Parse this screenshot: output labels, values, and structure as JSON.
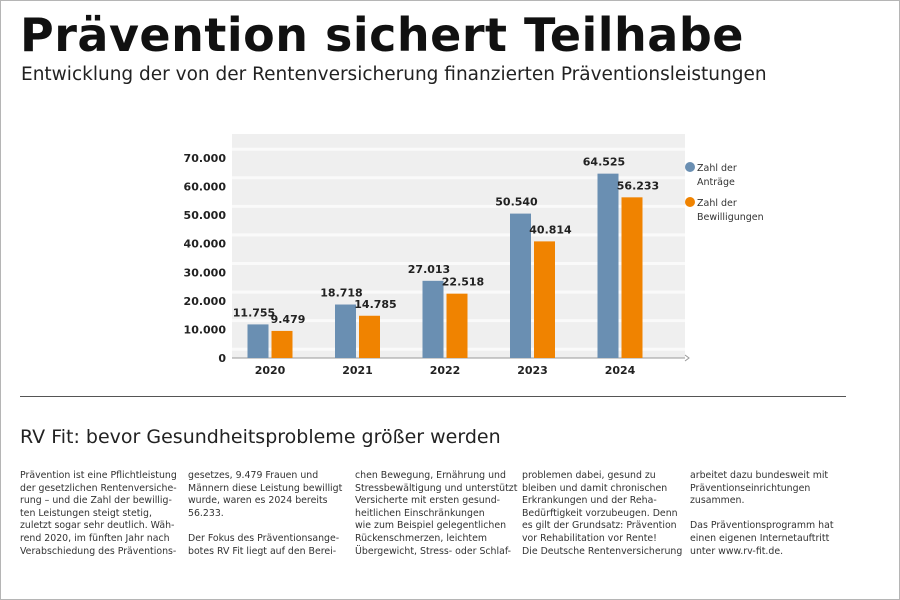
{
  "title": "Prävention sichert Teilhabe",
  "subtitle": "Entwicklung der von der Rentenversicherung finanzierten Präventionsleistungen",
  "chart_data": {
    "type": "bar",
    "categories": [
      "2020",
      "2021",
      "2022",
      "2023",
      "2024"
    ],
    "series": [
      {
        "name": "Zahl der Anträge",
        "values": [
          11755,
          18718,
          27013,
          50540,
          64525
        ],
        "labels": [
          "11.755",
          "18.718",
          "27.013",
          "50.540",
          "64.525"
        ],
        "color": "#6a8fb2"
      },
      {
        "name": "Zahl der Bewilligungen",
        "values": [
          9479,
          14785,
          22518,
          40814,
          56233
        ],
        "labels": [
          "9.479",
          "14.785",
          "22.518",
          "40.814",
          "56.233"
        ],
        "color": "#f08300"
      }
    ],
    "legend_lines": [
      [
        "Zahl der",
        "Anträge"
      ],
      [
        "Zahl der",
        "Bewilligungen"
      ]
    ],
    "yticks": [
      0,
      10000,
      20000,
      30000,
      40000,
      50000,
      60000,
      70000
    ],
    "ytick_labels": [
      "0",
      "10.000",
      "20.000",
      "30.000",
      "40.000",
      "50.000",
      "60.000",
      "70.000"
    ],
    "ylim": [
      0,
      70000
    ],
    "legend_position": "right",
    "grid": true
  },
  "section_heading": "RV Fit: bevor Gesundheitsprobleme größer werden",
  "columns": [
    "Prävention ist eine Pflichtleistung\nder gesetzlichen Rentenversiche-\nrung – und die Zahl der bewillig-\nten Leistungen steigt stetig,\nzuletzt sogar sehr deutlich. Wäh-\nrend 2020, im fünften Jahr nach\nVerabschiedung des Präventions-",
    "gesetzes, 9.479 Frauen und\nMännern diese Leistung bewilligt\nwurde, waren es 2024 bereits\n56.233.\n\nDer Fokus des Präventionsange-\nbotes RV Fit liegt auf den Berei-",
    "chen Bewegung, Ernährung und\nStressbewältigung und unterstützt\nVersicherte mit ersten gesund-\nheitlichen Einschränkungen\nwie zum Beispiel gelegentlichen\nRückenschmerzen, leichtem\nÜbergewicht, Stress- oder Schlaf-",
    "problemen dabei, gesund zu\nbleiben und damit chronischen\nErkrankungen und der Reha-\nBedürftigkeit vorzubeugen. Denn\nes gilt der Grundsatz: Prävention\nvor Rehabilitation vor Rente!\nDie Deutsche Rentenversicherung",
    "arbeitet dazu bundesweit mit\nPräventionseinrichtungen\nzusammen.\n\nDas Präventionsprogramm hat\neinen eigenen Internetauftritt\nunter www.rv-fit.de."
  ]
}
